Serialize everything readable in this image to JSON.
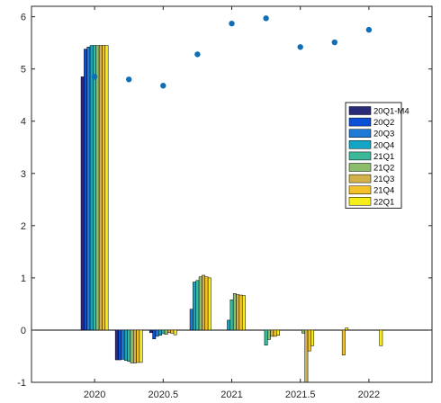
{
  "chart_data": {
    "type": "bar",
    "title": "",
    "xlabel": "",
    "ylabel": "",
    "xlim": [
      2019.54,
      2022.46
    ],
    "ylim": [
      -1,
      6.2
    ],
    "xticks": [
      2020,
      2020.5,
      2021,
      2021.5,
      2022
    ],
    "xtick_labels": [
      "2020",
      "2020.5",
      "2021",
      "2021.5",
      "2022"
    ],
    "yticks": [
      -1,
      0,
      1,
      2,
      3,
      4,
      5,
      6
    ],
    "ytick_labels": [
      "-1",
      "0",
      "1",
      "2",
      "3",
      "4",
      "5",
      "6"
    ],
    "grid": false,
    "legend_position": "inside right",
    "x": [
      2020,
      2020.25,
      2020.5,
      2020.75,
      2021,
      2021.25,
      2021.5,
      2021.75,
      2022
    ],
    "series": [
      {
        "name": "20Q1-M4",
        "color": "#2a2a7a",
        "values": [
          4.85,
          -0.57,
          -0.05,
          0.0,
          0.0,
          0.0,
          0.0,
          0.0,
          0.0
        ]
      },
      {
        "name": "20Q2",
        "color": "#0a4fd6",
        "values": [
          5.38,
          -0.57,
          -0.17,
          0.0,
          0.0,
          0.0,
          0.0,
          0.0,
          0.0
        ]
      },
      {
        "name": "20Q3",
        "color": "#1f7ad6",
        "values": [
          5.42,
          -0.56,
          -0.12,
          0.4,
          0.0,
          0.0,
          0.0,
          0.0,
          0.0
        ]
      },
      {
        "name": "20Q4",
        "color": "#12a6c6",
        "values": [
          5.45,
          -0.58,
          -0.1,
          0.92,
          0.19,
          0.0,
          0.0,
          0.0,
          0.0
        ]
      },
      {
        "name": "21Q1",
        "color": "#3bb89a",
        "values": [
          5.45,
          -0.6,
          -0.07,
          0.95,
          0.58,
          -0.29,
          0.0,
          0.0,
          0.0
        ]
      },
      {
        "name": "21Q2",
        "color": "#8cbd6a",
        "values": [
          5.45,
          -0.63,
          -0.08,
          1.02,
          0.7,
          -0.18,
          -0.06,
          0.0,
          0.0
        ]
      },
      {
        "name": "21Q3",
        "color": "#d2b04a",
        "values": [
          5.45,
          -0.63,
          -0.05,
          1.05,
          0.68,
          -0.12,
          -1.0,
          0.0,
          0.0
        ]
      },
      {
        "name": "21Q4",
        "color": "#f2c228",
        "values": [
          5.45,
          -0.62,
          -0.06,
          1.02,
          0.67,
          -0.12,
          -0.4,
          -0.48,
          0.0
        ]
      },
      {
        "name": "22Q1",
        "color": "#f5ee1a",
        "values": [
          5.45,
          -0.62,
          -0.09,
          1.0,
          0.66,
          -0.1,
          -0.3,
          0.04,
          -0.3
        ]
      }
    ],
    "markers": {
      "color": "#0e6fb8",
      "x": [
        2020,
        2020.25,
        2020.5,
        2020.75,
        2021,
        2021.25,
        2021.5,
        2021.75,
        2022
      ],
      "y": [
        4.85,
        4.8,
        4.68,
        5.28,
        5.87,
        5.97,
        5.42,
        5.51,
        5.75
      ]
    }
  }
}
